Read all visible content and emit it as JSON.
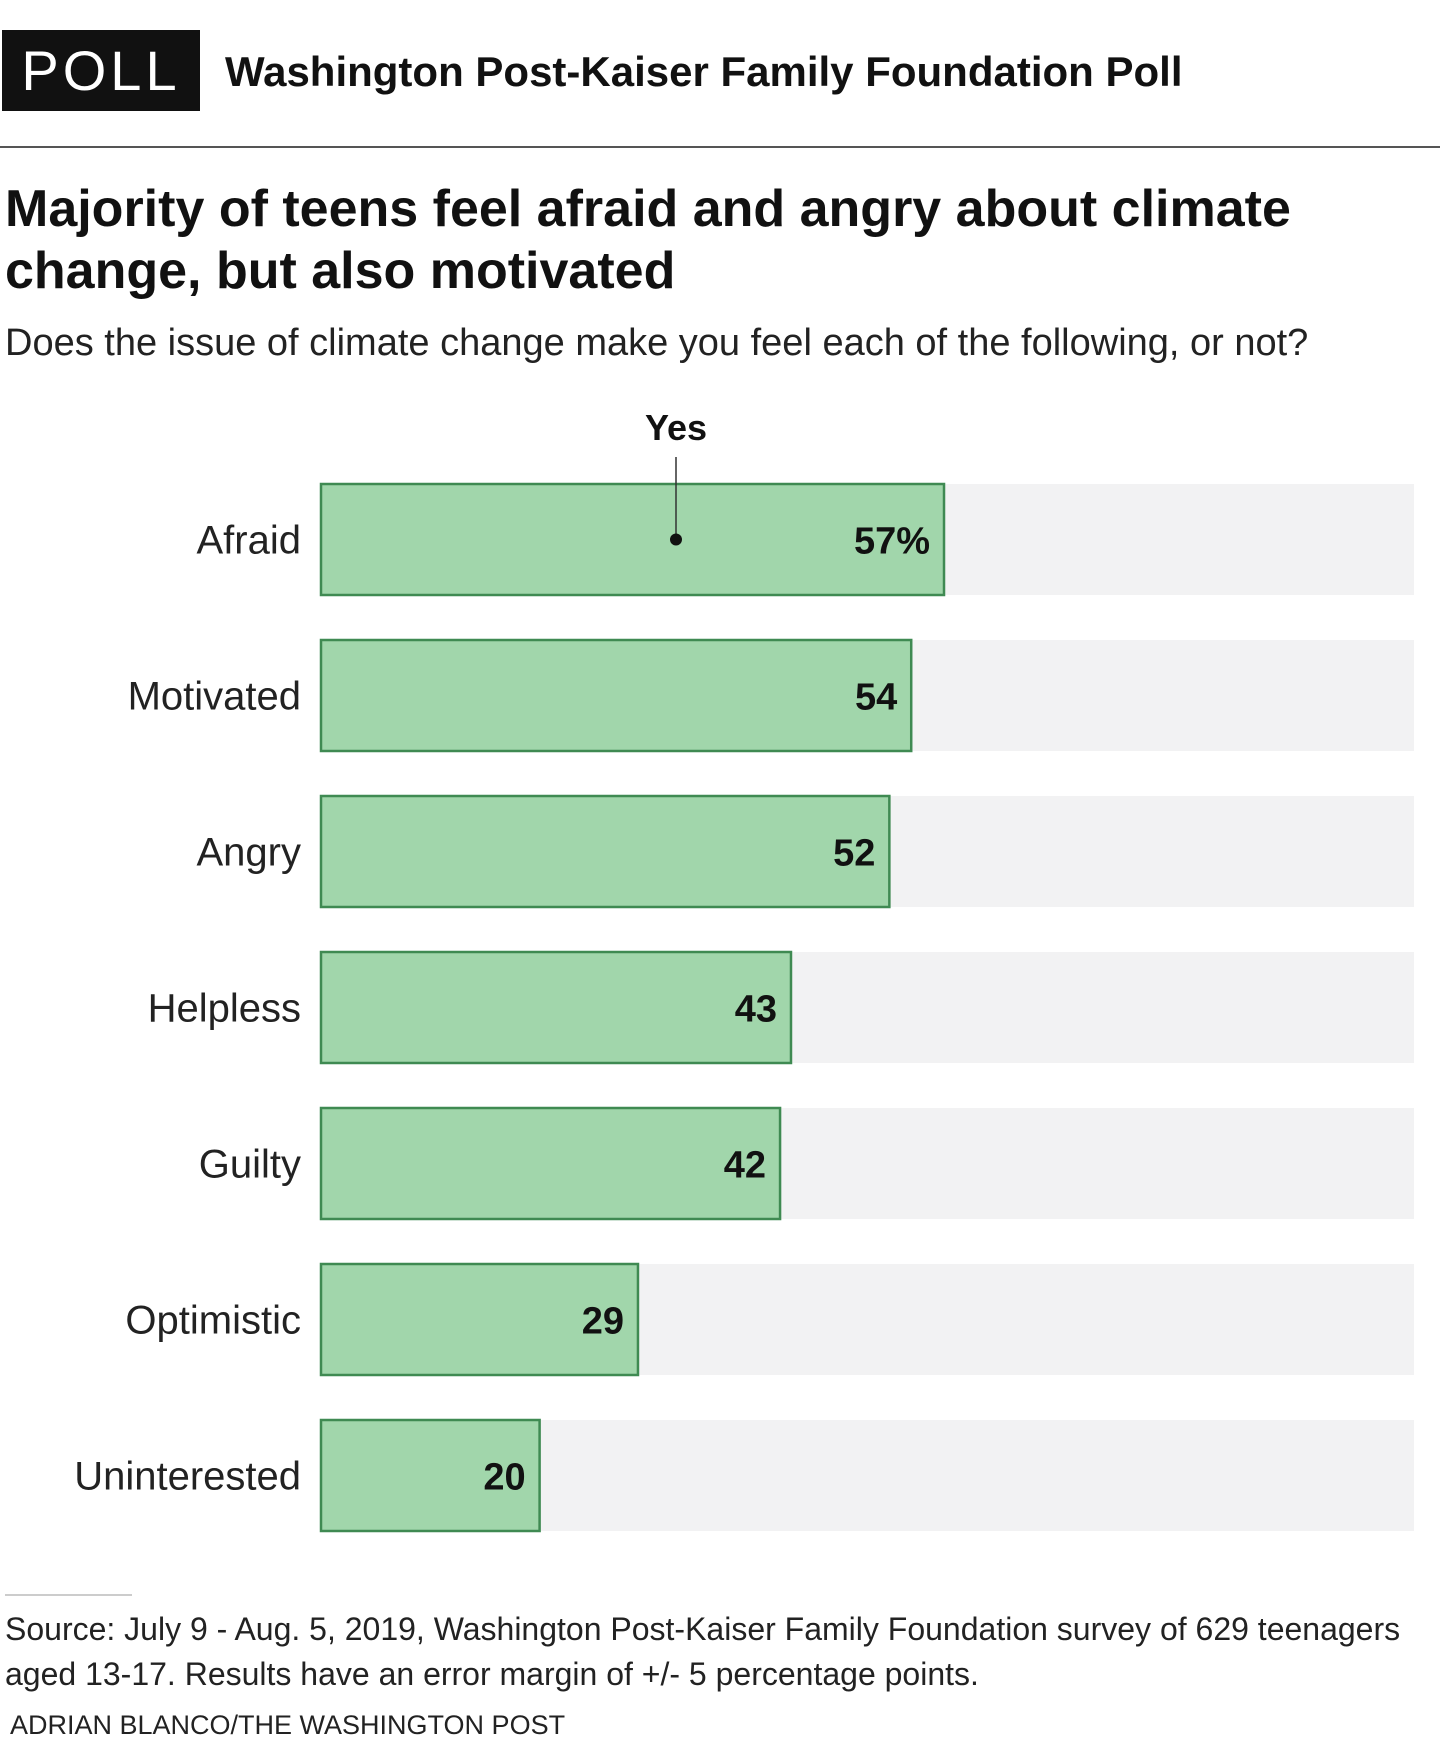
{
  "header": {
    "badge": "POLL",
    "poll_name": "Washington Post-Kaiser Family Foundation Poll"
  },
  "chart_data": {
    "type": "bar",
    "orientation": "horizontal",
    "title": "Majority of teens feel afraid and angry about climate change, but also motivated",
    "subtitle": "Does the issue of climate change make you feel each of the following, or not?",
    "series_label": "Yes",
    "categories": [
      "Afraid",
      "Motivated",
      "Angry",
      "Helpless",
      "Guilty",
      "Optimistic",
      "Uninterested"
    ],
    "values": [
      57,
      54,
      52,
      43,
      42,
      29,
      20
    ],
    "value_labels": [
      "57%",
      "54",
      "52",
      "43",
      "42",
      "29",
      "20"
    ],
    "xlim": [
      0,
      100
    ],
    "grid": false,
    "colors": {
      "bar": "#a1d6ab",
      "bar_border": "#3f8a52",
      "track": "#f2f2f3"
    }
  },
  "footer": {
    "source": "Source: July 9 - Aug. 5, 2019, Washington Post-Kaiser Family Foundation survey of 629 teenagers aged 13-17. Results have an error margin of +/- 5 percentage points.",
    "credit": "ADRIAN BLANCO/THE WASHINGTON POST"
  }
}
